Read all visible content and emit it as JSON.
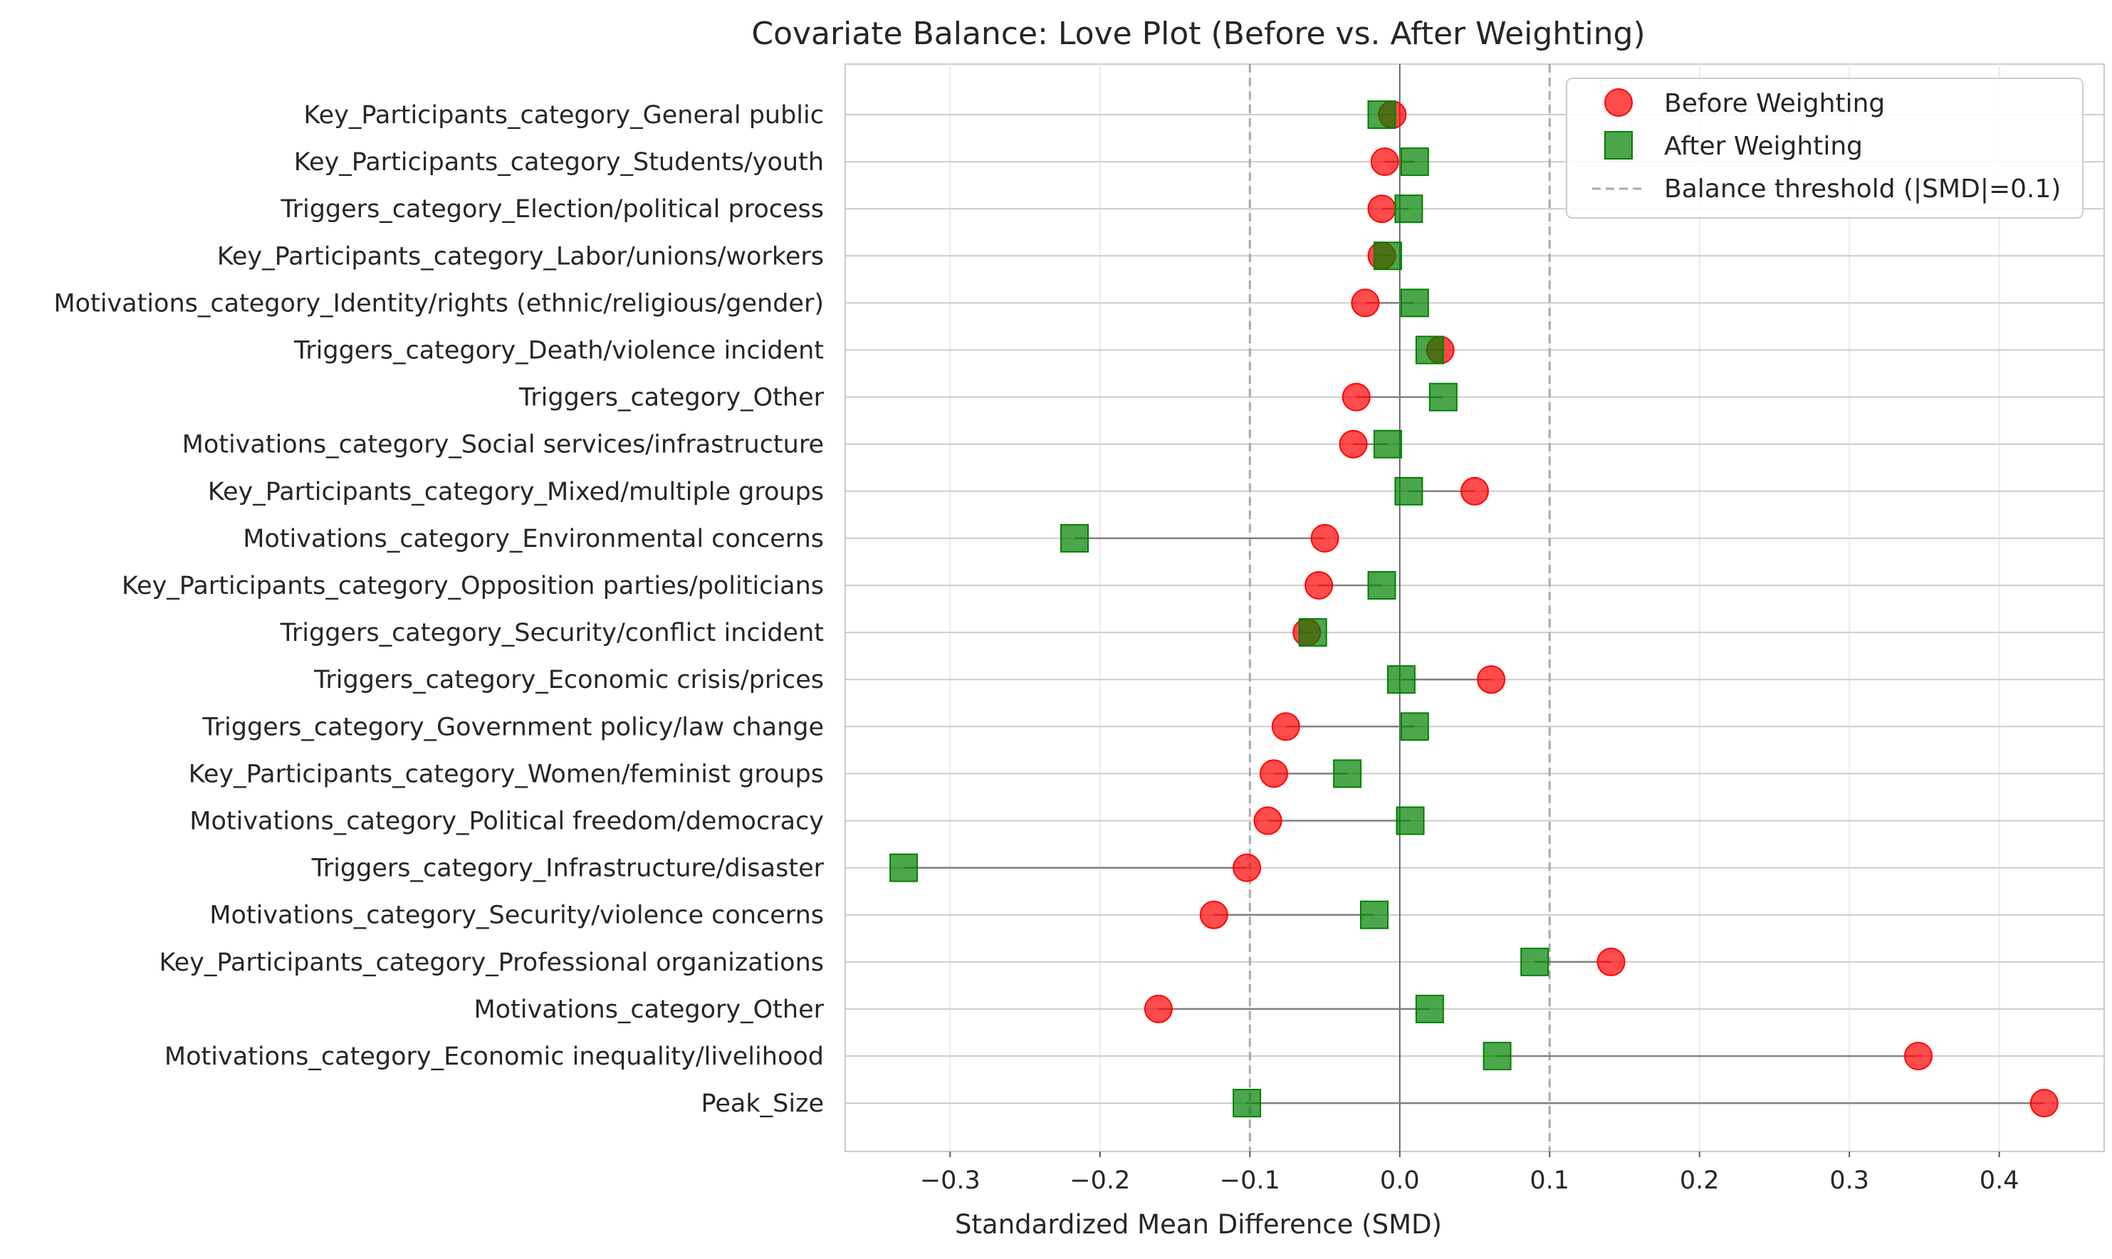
{
  "chart_data": {
    "type": "scatter",
    "title": "Covariate Balance: Love Plot (Before vs. After Weighting)",
    "xlabel": "Standardized Mean Difference (SMD)",
    "ylabel": "",
    "xlim": [
      -0.37,
      0.47
    ],
    "xticks": [
      -0.3,
      -0.2,
      -0.1,
      0.0,
      0.1,
      0.2,
      0.3,
      0.4
    ],
    "xtick_labels": [
      "−0.3",
      "−0.2",
      "−0.1",
      "0.0",
      "0.1",
      "0.2",
      "0.3",
      "0.4"
    ],
    "grid": true,
    "legend_position": "top-right",
    "threshold": 0.1,
    "categories": [
      "Key_Participants_category_General public",
      "Key_Participants_category_Students/youth",
      "Triggers_category_Election/political process",
      "Key_Participants_category_Labor/unions/workers",
      "Motivations_category_Identity/rights (ethnic/religious/gender)",
      "Triggers_category_Death/violence incident",
      "Triggers_category_Other",
      "Motivations_category_Social services/infrastructure",
      "Key_Participants_category_Mixed/multiple groups",
      "Motivations_category_Environmental concerns",
      "Key_Participants_category_Opposition parties/politicians",
      "Triggers_category_Security/conflict incident",
      "Triggers_category_Economic crisis/prices",
      "Triggers_category_Government policy/law change",
      "Key_Participants_category_Women/feminist groups",
      "Motivations_category_Political freedom/democracy",
      "Triggers_category_Infrastructure/disaster",
      "Motivations_category_Security/violence concerns",
      "Key_Participants_category_Professional organizations",
      "Motivations_category_Other",
      "Motivations_category_Economic inequality/livelihood",
      "Peak_Size"
    ],
    "series": [
      {
        "name": "Before Weighting",
        "marker": "circle",
        "color": "#ff0000",
        "values": [
          -0.005,
          -0.01,
          -0.012,
          -0.012,
          -0.023,
          0.027,
          -0.029,
          -0.031,
          0.05,
          -0.05,
          -0.054,
          -0.062,
          0.061,
          -0.076,
          -0.084,
          -0.088,
          -0.102,
          -0.124,
          0.141,
          -0.161,
          0.346,
          0.43
        ]
      },
      {
        "name": "After Weighting",
        "marker": "square",
        "color": "#008000",
        "values": [
          -0.012,
          0.01,
          0.006,
          -0.008,
          0.01,
          0.02,
          0.029,
          -0.008,
          0.006,
          -0.217,
          -0.012,
          -0.058,
          0.001,
          0.01,
          -0.035,
          0.007,
          -0.331,
          -0.017,
          0.09,
          0.02,
          0.065,
          -0.102
        ]
      }
    ],
    "legend": {
      "before": "Before Weighting",
      "after": "After Weighting",
      "threshold": "Balance threshold (|SMD|=0.1)"
    }
  }
}
